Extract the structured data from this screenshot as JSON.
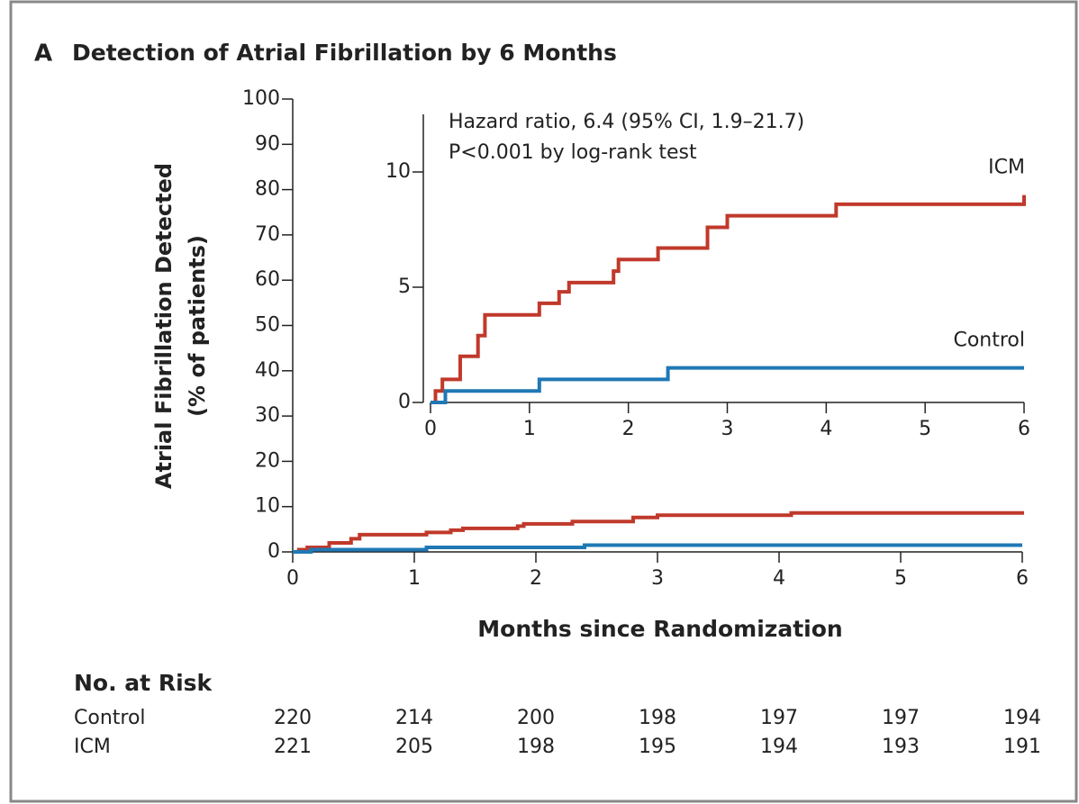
{
  "chart_data": {
    "type": "step",
    "panel": "A",
    "title": "Detection of Atrial Fibrillation by 6 Months",
    "xlabel": "Months since Randomization",
    "ylabel": [
      "Atrial Fibrillation Detected",
      "(% of patients)"
    ],
    "xlim": [
      0,
      6
    ],
    "xticks": [
      0,
      1,
      2,
      3,
      4,
      5,
      6
    ],
    "ylim": [
      0,
      100
    ],
    "yticks": [
      0,
      10,
      20,
      30,
      40,
      50,
      60,
      70,
      80,
      90,
      100
    ],
    "series": [
      {
        "name": "ICM",
        "color": "#c0392b",
        "x": [
          0,
          0.05,
          0.12,
          0.3,
          0.48,
          0.55,
          1.1,
          1.3,
          1.4,
          1.85,
          1.9,
          2.3,
          2.8,
          3.0,
          4.1,
          6.0
        ],
        "values": [
          0,
          0.5,
          1.0,
          2.0,
          2.9,
          3.8,
          4.3,
          4.8,
          5.2,
          5.7,
          6.2,
          6.7,
          7.6,
          8.1,
          8.6,
          9.0
        ]
      },
      {
        "name": "Control",
        "color": "#1f78b4",
        "x": [
          0,
          0.15,
          1.1,
          2.4,
          6.0
        ],
        "values": [
          0,
          0.5,
          1.0,
          1.5,
          1.5
        ]
      }
    ],
    "inset": {
      "xlim": [
        0,
        6
      ],
      "xticks": [
        0,
        1,
        2,
        3,
        4,
        5,
        6
      ],
      "ylim": [
        0,
        12.5
      ],
      "yticks": [
        0,
        5,
        10
      ],
      "annotations": [
        "Hazard ratio, 6.4 (95% CI, 1.9–21.7)",
        "P<0.001 by log-rank test"
      ]
    }
  },
  "risk_table": {
    "title": "No. at Risk",
    "rows": [
      {
        "name": "Control",
        "values": [
          220,
          214,
          200,
          198,
          197,
          197,
          194
        ]
      },
      {
        "name": "ICM",
        "values": [
          221,
          205,
          198,
          195,
          194,
          193,
          191
        ]
      }
    ]
  }
}
